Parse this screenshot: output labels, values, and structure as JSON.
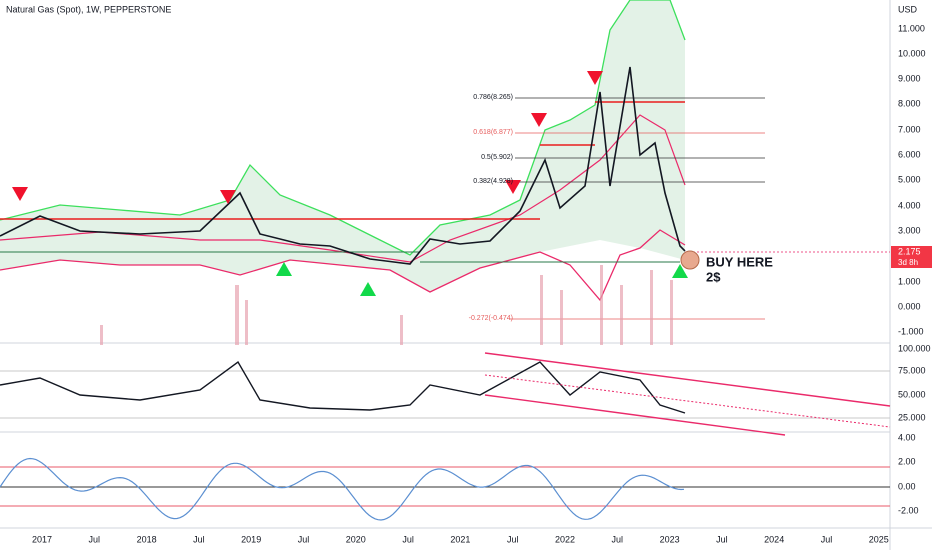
{
  "header": {
    "title": "Natural Gas (Spot), 1W, PEPPERSTONE"
  },
  "price_axis": {
    "currency": "USD",
    "labels": [
      "11.000",
      "10.000",
      "9.000",
      "8.000",
      "7.000",
      "6.000",
      "5.000",
      "4.000",
      "3.000",
      "1.000",
      "0.000",
      "-1.000"
    ],
    "current": "2.175",
    "countdown": "3d 8h"
  },
  "fib_labels": [
    "0.786(8.265)",
    "0.618(6.877)",
    "0.5(5.902)",
    "0.382(4.928)",
    "-0.272(-0.474)"
  ],
  "annotation": {
    "line1": "BUY HERE",
    "line2": "2$"
  },
  "rsi_axis": {
    "labels": [
      "100.000",
      "75.000",
      "50.000",
      "25.000"
    ]
  },
  "osc_axis": {
    "labels": [
      "4.00",
      "2.00",
      "0.00",
      "-2.00"
    ]
  },
  "time_axis": {
    "labels": [
      "2017",
      "Jul",
      "2018",
      "Jul",
      "2019",
      "Jul",
      "2020",
      "Jul",
      "2021",
      "Jul",
      "2022",
      "Jul",
      "2023",
      "Jul",
      "2024",
      "Jul",
      "2025"
    ]
  }
}
